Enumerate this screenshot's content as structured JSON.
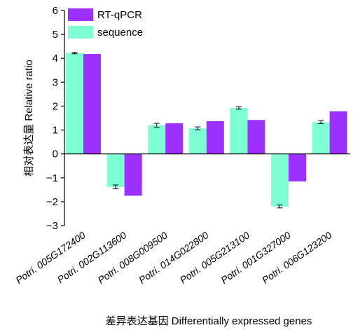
{
  "chart_data": {
    "type": "bar",
    "title": "",
    "xlabel": "差异表达基因 Differentially expressed genes",
    "ylabel": "相对表达量 Relative ratio",
    "ylim": [
      -3,
      6
    ],
    "yticks": [
      "−3",
      "−2",
      "−1",
      "0",
      "1",
      "2",
      "3",
      "4",
      "5",
      "6"
    ],
    "grid": false,
    "legend_position": "top-left",
    "categories": [
      "Potri. 005G172400",
      "Potri. 002G113600",
      "Potri. 008G009500",
      "Potri. 014G022800",
      "Potri. 005G213100",
      "Potri. 001G327000",
      "Potri. 006G123200"
    ],
    "series": [
      {
        "name": "sequence",
        "color": "#7fffd4",
        "values": [
          4.22,
          -1.38,
          1.2,
          1.07,
          1.92,
          -2.2,
          1.33
        ],
        "error": [
          0.03,
          0.08,
          0.08,
          0.06,
          0.05,
          0.06,
          0.06
        ]
      },
      {
        "name": "RT-qPCR",
        "color": "#9b30ff",
        "values": [
          4.18,
          -1.75,
          1.28,
          1.37,
          1.42,
          -1.15,
          1.78
        ]
      }
    ],
    "legend_order": [
      "RT-qPCR",
      "sequence"
    ]
  }
}
